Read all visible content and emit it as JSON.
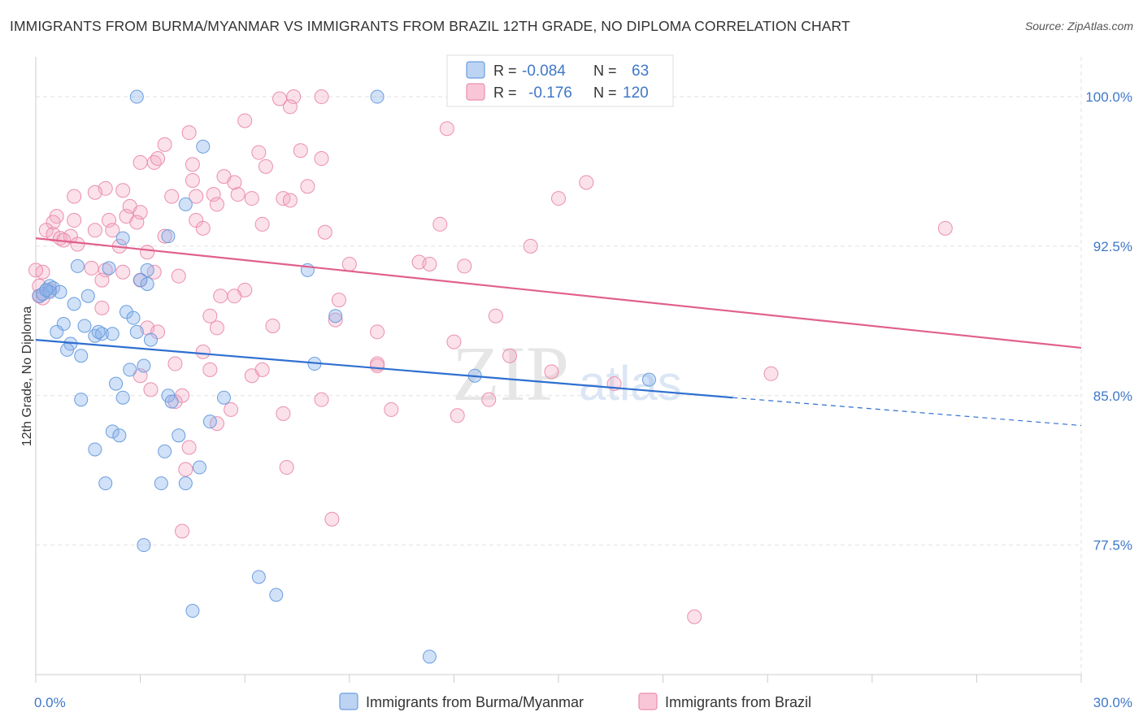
{
  "title": "IMMIGRANTS FROM BURMA/MYANMAR VS IMMIGRANTS FROM BRAZIL 12TH GRADE, NO DIPLOMA CORRELATION CHART",
  "source": "Source: ZipAtlas.com",
  "watermark": {
    "zip": "ZIP",
    "atlas": "atlas"
  },
  "legend_top": {
    "rows": [
      {
        "r_label": "R =",
        "r_value": "-0.084",
        "n_label": "N =",
        "n_value": "63"
      },
      {
        "r_label": "R =",
        "r_value": "-0.176",
        "n_label": "N =",
        "n_value": "120"
      }
    ]
  },
  "chart_data": {
    "type": "scatter",
    "title": "IMMIGRANTS FROM BURMA/MYANMAR VS IMMIGRANTS FROM BRAZIL 12TH GRADE, NO DIPLOMA CORRELATION CHART",
    "ylabel": "12th Grade, No Diploma",
    "xlim": [
      0,
      30
    ],
    "ylim": [
      71,
      102
    ],
    "x_tick_labels": [
      "0.0%",
      "30.0%"
    ],
    "y_ticks": [
      77.5,
      85.0,
      92.5,
      100.0
    ],
    "y_tick_labels": [
      "77.5%",
      "85.0%",
      "92.5%",
      "100.0%"
    ],
    "grid": true,
    "legend_position": "bottom",
    "colors": {
      "burma": "#6a9ee0",
      "brazil": "#eb8fae",
      "burma_line": "#2f6fd0",
      "brazil_line": "#e0608e",
      "tick_label": "#3f78c8"
    },
    "series": [
      {
        "name": "Immigrants from Burma/Myanmar",
        "color": "#6a9ee0",
        "r": -0.084,
        "n": 63,
        "trend": {
          "x0": 0.0,
          "y0": 87.8,
          "x1": 20.0,
          "y1": 84.9,
          "dash_to_x": 30.0,
          "dash_to_y": 83.5
        },
        "points": [
          [
            2.9,
            100
          ],
          [
            9.8,
            100
          ],
          [
            4.8,
            97.5
          ],
          [
            4.3,
            94.6
          ],
          [
            0.3,
            90.3
          ],
          [
            0.4,
            90.5
          ],
          [
            0.5,
            90.4
          ],
          [
            0.7,
            90.2
          ],
          [
            1.2,
            91.5
          ],
          [
            2.1,
            91.4
          ],
          [
            3.2,
            91.3
          ],
          [
            3.0,
            90.8
          ],
          [
            3.8,
            93.0
          ],
          [
            2.5,
            92.9
          ],
          [
            7.8,
            91.3
          ],
          [
            1.1,
            89.6
          ],
          [
            2.6,
            89.2
          ],
          [
            0.8,
            88.6
          ],
          [
            1.4,
            88.5
          ],
          [
            2.8,
            88.9
          ],
          [
            0.6,
            88.2
          ],
          [
            1.7,
            88.0
          ],
          [
            1.9,
            88.1
          ],
          [
            2.9,
            88.2
          ],
          [
            3.3,
            87.8
          ],
          [
            1.0,
            87.6
          ],
          [
            0.9,
            87.3
          ],
          [
            1.3,
            87.0
          ],
          [
            3.1,
            86.5
          ],
          [
            2.7,
            86.3
          ],
          [
            8.0,
            86.6
          ],
          [
            12.6,
            86.0
          ],
          [
            17.6,
            85.8
          ],
          [
            2.3,
            85.6
          ],
          [
            2.5,
            84.9
          ],
          [
            1.3,
            84.8
          ],
          [
            3.8,
            85.0
          ],
          [
            5.4,
            84.9
          ],
          [
            3.9,
            84.7
          ],
          [
            5.0,
            83.7
          ],
          [
            2.2,
            83.2
          ],
          [
            2.4,
            83.0
          ],
          [
            4.1,
            83.0
          ],
          [
            1.7,
            82.3
          ],
          [
            3.7,
            82.2
          ],
          [
            8.6,
            89.0
          ],
          [
            4.7,
            81.4
          ],
          [
            2.0,
            80.6
          ],
          [
            3.6,
            80.6
          ],
          [
            4.3,
            80.6
          ],
          [
            3.1,
            77.5
          ],
          [
            6.4,
            75.9
          ],
          [
            6.9,
            75.0
          ],
          [
            4.5,
            74.2
          ],
          [
            11.3,
            71.9
          ],
          [
            0.1,
            90.0
          ],
          [
            0.2,
            90.1
          ],
          [
            0.4,
            90.2
          ],
          [
            1.5,
            90.0
          ],
          [
            2.2,
            88.1
          ],
          [
            3.2,
            90.6
          ],
          [
            0.3,
            90.3
          ],
          [
            1.8,
            88.2
          ]
        ]
      },
      {
        "name": "Immigrants from Brazil",
        "color": "#eb8fae",
        "r": -0.176,
        "n": 120,
        "trend": {
          "x0": 0.0,
          "y0": 92.9,
          "x1": 30.0,
          "y1": 87.4
        },
        "points": [
          [
            7.0,
            99.9
          ],
          [
            7.4,
            100
          ],
          [
            8.2,
            100
          ],
          [
            7.3,
            99.5
          ],
          [
            6.0,
            98.8
          ],
          [
            12.0,
            99.9
          ],
          [
            11.8,
            98.4
          ],
          [
            4.4,
            98.2
          ],
          [
            3.7,
            97.6
          ],
          [
            6.4,
            97.2
          ],
          [
            7.6,
            97.3
          ],
          [
            8.2,
            96.9
          ],
          [
            3.0,
            96.7
          ],
          [
            3.4,
            96.7
          ],
          [
            3.5,
            96.9
          ],
          [
            4.5,
            96.6
          ],
          [
            5.4,
            96.0
          ],
          [
            6.6,
            96.5
          ],
          [
            7.8,
            95.5
          ],
          [
            4.5,
            95.8
          ],
          [
            5.7,
            95.7
          ],
          [
            15.8,
            95.7
          ],
          [
            2.0,
            95.4
          ],
          [
            2.5,
            95.3
          ],
          [
            1.7,
            95.2
          ],
          [
            1.1,
            95.0
          ],
          [
            3.9,
            95.0
          ],
          [
            4.6,
            95.0
          ],
          [
            5.1,
            95.1
          ],
          [
            5.8,
            95.1
          ],
          [
            6.2,
            94.9
          ],
          [
            7.1,
            94.9
          ],
          [
            7.3,
            94.8
          ],
          [
            15.0,
            94.9
          ],
          [
            5.2,
            94.6
          ],
          [
            2.7,
            94.5
          ],
          [
            3.0,
            94.2
          ],
          [
            2.6,
            94.0
          ],
          [
            0.6,
            94.0
          ],
          [
            0.5,
            93.7
          ],
          [
            1.1,
            93.8
          ],
          [
            4.6,
            93.8
          ],
          [
            6.5,
            93.6
          ],
          [
            11.6,
            93.6
          ],
          [
            2.1,
            93.8
          ],
          [
            2.9,
            93.7
          ],
          [
            1.7,
            93.3
          ],
          [
            2.2,
            93.3
          ],
          [
            4.8,
            93.4
          ],
          [
            0.3,
            93.3
          ],
          [
            0.5,
            93.1
          ],
          [
            0.7,
            92.9
          ],
          [
            1.0,
            93.0
          ],
          [
            3.7,
            93.0
          ],
          [
            8.3,
            93.2
          ],
          [
            26.1,
            93.4
          ],
          [
            0.8,
            92.8
          ],
          [
            1.2,
            92.6
          ],
          [
            2.4,
            92.5
          ],
          [
            3.2,
            92.2
          ],
          [
            14.2,
            92.5
          ],
          [
            11.0,
            91.7
          ],
          [
            12.3,
            91.5
          ],
          [
            1.6,
            91.4
          ],
          [
            2.0,
            91.3
          ],
          [
            2.5,
            91.2
          ],
          [
            3.4,
            91.2
          ],
          [
            4.1,
            91.0
          ],
          [
            1.9,
            90.8
          ],
          [
            3.0,
            90.8
          ],
          [
            9.0,
            91.6
          ],
          [
            11.3,
            91.6
          ],
          [
            0.2,
            91.2
          ],
          [
            0.1,
            90.5
          ],
          [
            0.4,
            90.3
          ],
          [
            6.0,
            90.3
          ],
          [
            5.3,
            90.0
          ],
          [
            5.7,
            90.0
          ],
          [
            8.7,
            89.8
          ],
          [
            0.2,
            89.9
          ],
          [
            1.9,
            89.4
          ],
          [
            5.0,
            89.0
          ],
          [
            8.6,
            88.8
          ],
          [
            13.2,
            89.0
          ],
          [
            6.8,
            88.5
          ],
          [
            5.2,
            88.4
          ],
          [
            3.2,
            88.4
          ],
          [
            3.5,
            88.2
          ],
          [
            9.8,
            88.2
          ],
          [
            12.0,
            87.7
          ],
          [
            4.8,
            87.2
          ],
          [
            13.6,
            87.0
          ],
          [
            4.0,
            86.6
          ],
          [
            6.5,
            86.3
          ],
          [
            5.0,
            86.3
          ],
          [
            9.8,
            86.5
          ],
          [
            9.8,
            86.6
          ],
          [
            3.0,
            86.0
          ],
          [
            6.2,
            86.0
          ],
          [
            14.8,
            86.2
          ],
          [
            21.1,
            86.1
          ],
          [
            16.6,
            85.6
          ],
          [
            3.3,
            85.3
          ],
          [
            4.2,
            85.0
          ],
          [
            4.0,
            84.7
          ],
          [
            8.2,
            84.8
          ],
          [
            13.0,
            84.8
          ],
          [
            5.6,
            84.3
          ],
          [
            10.2,
            84.3
          ],
          [
            7.1,
            84.1
          ],
          [
            12.1,
            84.0
          ],
          [
            5.2,
            83.6
          ],
          [
            4.4,
            82.4
          ],
          [
            4.3,
            81.3
          ],
          [
            7.2,
            81.4
          ],
          [
            8.5,
            78.8
          ],
          [
            4.2,
            78.2
          ],
          [
            18.9,
            73.9
          ],
          [
            0.0,
            91.3
          ],
          [
            0.1,
            90.0
          ]
        ]
      }
    ]
  },
  "legend_bottom": [
    "Immigrants from Burma/Myanmar",
    "Immigrants from Brazil"
  ]
}
